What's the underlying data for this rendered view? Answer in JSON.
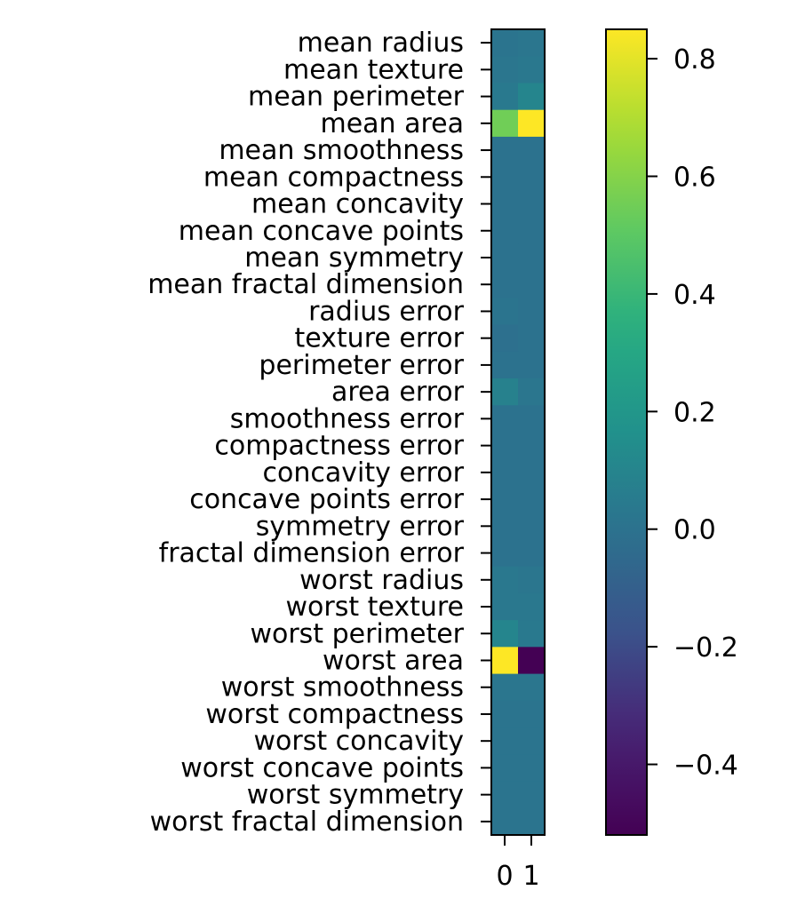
{
  "chart_data": {
    "type": "heatmap",
    "title": "",
    "xlabel": "",
    "ylabel": "",
    "x_tick_labels": [
      "0",
      "1"
    ],
    "rows": [
      "mean radius",
      "mean texture",
      "mean perimeter",
      "mean area",
      "mean smoothness",
      "mean compactness",
      "mean concavity",
      "mean concave points",
      "mean symmetry",
      "mean fractal dimension",
      "radius error",
      "texture error",
      "perimeter error",
      "area error",
      "smoothness error",
      "compactness error",
      "concavity error",
      "concave points error",
      "symmetry error",
      "fractal dimension error",
      "worst radius",
      "worst texture",
      "worst perimeter",
      "worst area",
      "worst smoothness",
      "worst compactness",
      "worst concavity",
      "worst concave points",
      "worst symmetry",
      "worst fractal dimension"
    ],
    "values": [
      [
        0.01,
        0.02
      ],
      [
        0.02,
        0.03
      ],
      [
        0.04,
        0.1
      ],
      [
        0.55,
        0.85
      ],
      [
        0.0,
        0.0
      ],
      [
        0.0,
        0.0
      ],
      [
        0.0,
        0.0
      ],
      [
        0.0,
        0.0
      ],
      [
        0.0,
        0.0
      ],
      [
        0.0,
        0.0
      ],
      [
        0.01,
        0.0
      ],
      [
        -0.01,
        0.0
      ],
      [
        0.0,
        0.0
      ],
      [
        0.08,
        0.02
      ],
      [
        0.0,
        0.0
      ],
      [
        0.0,
        0.0
      ],
      [
        0.0,
        0.0
      ],
      [
        0.0,
        0.0
      ],
      [
        0.0,
        0.0
      ],
      [
        0.0,
        0.0
      ],
      [
        0.03,
        0.02
      ],
      [
        0.03,
        0.03
      ],
      [
        0.1,
        0.04
      ],
      [
        0.85,
        -0.52
      ],
      [
        0.02,
        0.02
      ],
      [
        0.01,
        0.01
      ],
      [
        0.01,
        0.01
      ],
      [
        0.01,
        0.01
      ],
      [
        0.01,
        0.01
      ],
      [
        0.01,
        0.01
      ]
    ],
    "colorbar": {
      "colormap": "viridis",
      "range": [
        -0.52,
        0.85
      ],
      "ticks": [
        0.8,
        0.6,
        0.4,
        0.2,
        0.0,
        -0.2,
        -0.4
      ],
      "tick_labels": [
        "0.8",
        "0.6",
        "0.4",
        "0.2",
        "0.0",
        "−0.2",
        "−0.4"
      ]
    }
  }
}
